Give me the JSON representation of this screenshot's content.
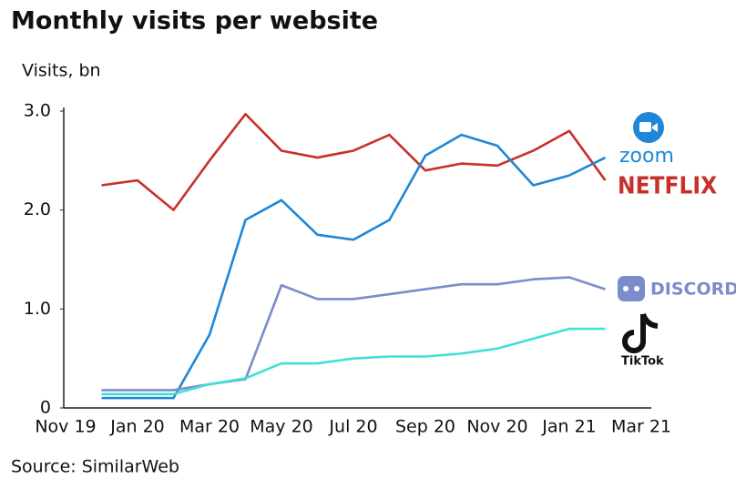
{
  "chart_data": {
    "type": "line",
    "title": "Monthly visits per website",
    "y_label": "Visits, bn",
    "source": "Source: SimilarWeb",
    "categories": [
      "Nov 19",
      null,
      "Jan 20",
      null,
      "Mar 20",
      null,
      "May 20",
      null,
      "Jul 20",
      null,
      "Sep 20",
      null,
      "Nov 20",
      null,
      "Jan 21",
      null,
      "Mar 21"
    ],
    "ylim": [
      0,
      3
    ],
    "yticks": [
      0,
      {
        "value": 1,
        "label": "1.0"
      },
      {
        "value": 2,
        "label": "2.0"
      },
      {
        "value": 3,
        "label": "3.0"
      }
    ],
    "grid": false,
    "series": [
      {
        "name": "NETFLIX",
        "color": "#c8302a",
        "values": [
          null,
          2.25,
          2.3,
          2.0,
          2.5,
          2.97,
          2.6,
          2.53,
          2.6,
          2.76,
          2.4,
          2.47,
          2.45,
          2.6,
          2.8,
          2.3,
          null
        ]
      },
      {
        "name": "zoom",
        "color": "#1f87d6",
        "values": [
          null,
          0.1,
          0.1,
          0.1,
          0.74,
          1.9,
          2.1,
          1.75,
          1.7,
          1.9,
          2.55,
          2.76,
          2.65,
          2.25,
          2.35,
          2.53,
          null
        ]
      },
      {
        "name": "DISCORD",
        "color": "#7b8ccc",
        "values": [
          null,
          0.18,
          0.18,
          0.18,
          0.24,
          0.29,
          1.24,
          1.1,
          1.1,
          1.15,
          1.2,
          1.25,
          1.25,
          1.3,
          1.32,
          1.2,
          null
        ]
      },
      {
        "name": "TikTok",
        "color": "#3ee0d8",
        "values": [
          null,
          0.14,
          0.14,
          0.14,
          0.24,
          0.3,
          0.45,
          0.45,
          0.5,
          0.52,
          0.52,
          0.55,
          0.6,
          0.7,
          0.8,
          0.8,
          null
        ]
      }
    ]
  }
}
